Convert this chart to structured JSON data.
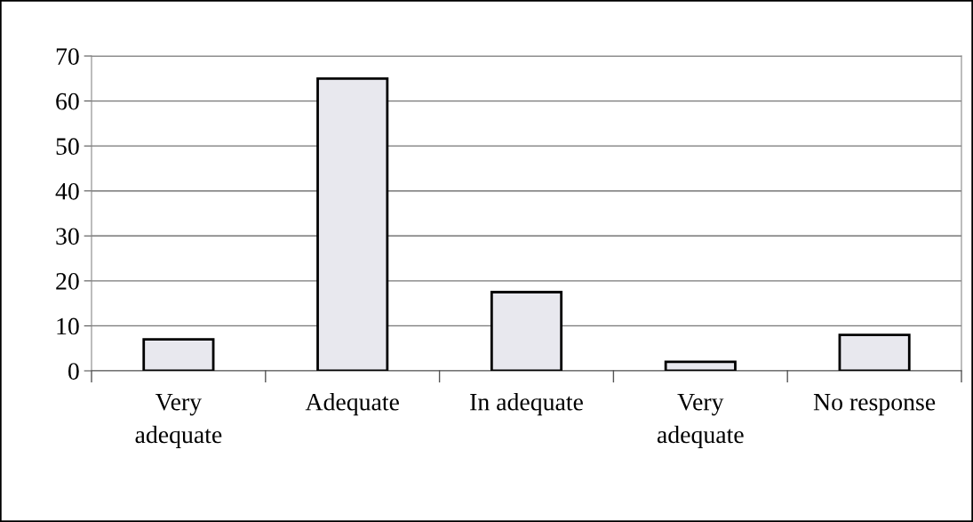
{
  "chart_data": {
    "type": "bar",
    "categories": [
      "Very\nadequate",
      "Adequate",
      "In adequate",
      "Very\nadequate",
      "No response"
    ],
    "values": [
      7,
      65,
      17.5,
      2,
      8
    ],
    "color": "#e8e8ee",
    "ylim": [
      0,
      70
    ],
    "yticks": [
      0,
      10,
      20,
      30,
      40,
      50,
      60,
      70
    ],
    "grid": "y",
    "legend": false
  }
}
